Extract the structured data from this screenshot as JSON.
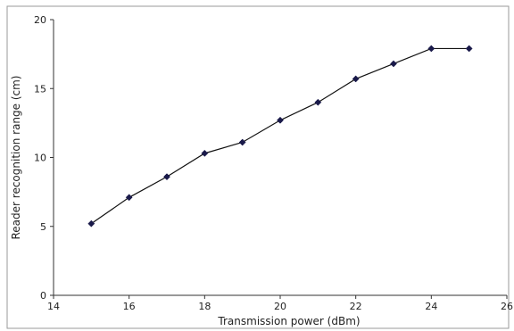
{
  "chart_data": {
    "type": "line",
    "title": "",
    "xlabel": "Transmission power (dBm)",
    "ylabel": "Reader recognition range (cm)",
    "xlim": [
      14,
      26
    ],
    "ylim": [
      0,
      20
    ],
    "x_ticks": [
      14,
      16,
      18,
      20,
      22,
      24,
      26
    ],
    "y_ticks": [
      0,
      5,
      10,
      15,
      20
    ],
    "x_tick_labels": [
      "14",
      "16",
      "18",
      "20",
      "22",
      "24",
      "26"
    ],
    "y_tick_labels": [
      "0",
      "5",
      "10",
      "15",
      "20"
    ],
    "grid": false,
    "legend": "none",
    "series": [
      {
        "x": [
          15,
          16,
          17,
          18,
          19,
          20,
          21,
          22,
          23,
          24,
          25
        ],
        "y": [
          5.2,
          7.1,
          8.6,
          10.3,
          11.1,
          12.7,
          14.0,
          15.7,
          16.8,
          17.9,
          17.9
        ],
        "color": "#1a1a4a",
        "marker": "diamond"
      }
    ],
    "axis_color": "#333333",
    "frame_color": "#9a9a9a"
  }
}
